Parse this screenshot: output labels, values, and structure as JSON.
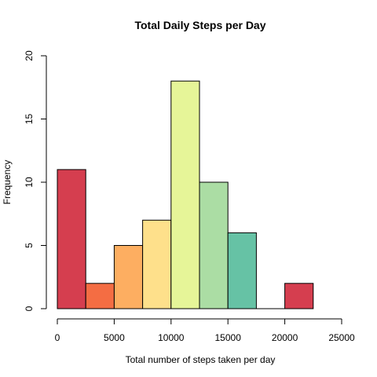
{
  "chart_data": {
    "type": "bar",
    "title": "Total Daily Steps per Day",
    "xlabel": "Total number of steps taken per day",
    "ylabel": "Frequency",
    "xlim": [
      0,
      25000
    ],
    "ylim": [
      0,
      20
    ],
    "x_ticks": [
      0,
      5000,
      10000,
      15000,
      20000,
      25000
    ],
    "x_tick_labels": [
      "0",
      "5000",
      "10000",
      "15000",
      "20000",
      "25000"
    ],
    "y_ticks": [
      0,
      5,
      10,
      15,
      20
    ],
    "y_tick_labels": [
      "0",
      "5",
      "10",
      "15",
      "20"
    ],
    "grid": false,
    "bins": [
      {
        "start": 0,
        "end": 2500,
        "value": 11,
        "color": "#d53e4f"
      },
      {
        "start": 2500,
        "end": 5000,
        "value": 2,
        "color": "#f46d43"
      },
      {
        "start": 5000,
        "end": 7500,
        "value": 5,
        "color": "#fdae61"
      },
      {
        "start": 7500,
        "end": 10000,
        "value": 7,
        "color": "#fee08b"
      },
      {
        "start": 10000,
        "end": 12500,
        "value": 18,
        "color": "#e6f598"
      },
      {
        "start": 12500,
        "end": 15000,
        "value": 10,
        "color": "#abdda4"
      },
      {
        "start": 15000,
        "end": 17500,
        "value": 6,
        "color": "#66c2a5"
      },
      {
        "start": 17500,
        "end": 20000,
        "value": 0,
        "color": "#3288bd"
      },
      {
        "start": 20000,
        "end": 22500,
        "value": 2,
        "color": "#d53e4f"
      }
    ]
  }
}
